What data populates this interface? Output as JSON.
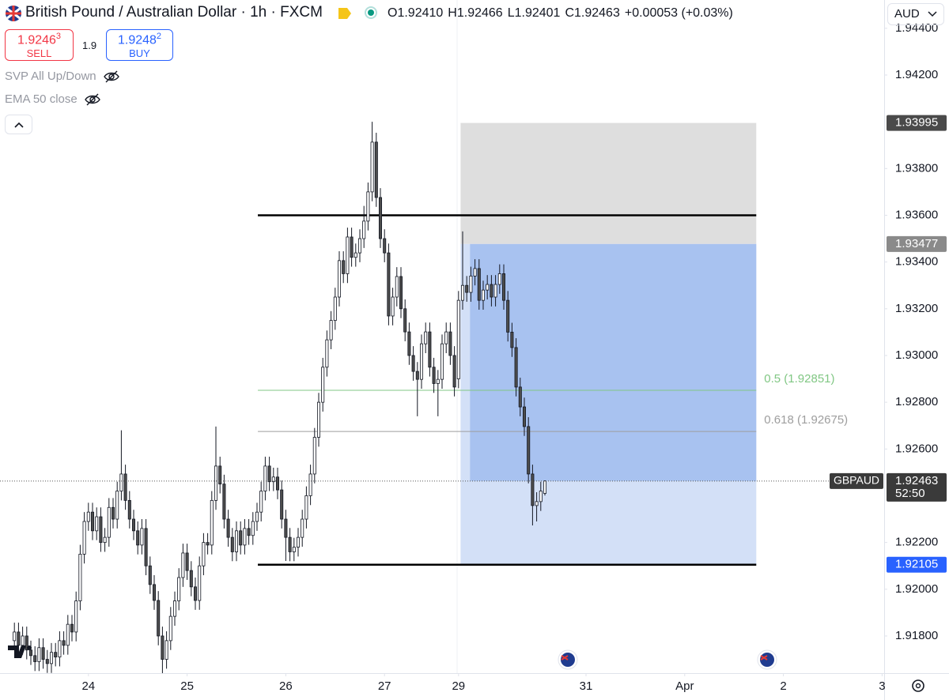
{
  "header": {
    "title": "British Pound / Australian Dollar · 1h · FXCM",
    "ohlc": [
      {
        "label": "O",
        "value": "1.92410"
      },
      {
        "label": "H",
        "value": "1.92466"
      },
      {
        "label": "L",
        "value": "1.92401"
      },
      {
        "label": "C",
        "value": "1.92463"
      }
    ],
    "change": "+0.00053 (+0.03%)",
    "currency": "AUD"
  },
  "trade": {
    "sell_price": "1.9246",
    "sell_sup": "3",
    "sell_label": "SELL",
    "spread": "1.9",
    "buy_price": "1.9248",
    "buy_sup": "2",
    "buy_label": "BUY"
  },
  "indicators": [
    "SVP All Up/Down",
    "EMA 50 close"
  ],
  "chart_data": {
    "type": "candlestick",
    "symbol": "GBPAUD",
    "countdown": "52:50",
    "colors": {
      "up": "#ffffff",
      "down": "#4d4d4d",
      "outline": "#131722"
    },
    "ylim": [
      1.91641,
      1.94521
    ],
    "yticks": [
      {
        "value": 1.944,
        "label": "1.94400"
      },
      {
        "value": 1.942,
        "label": "1.94200"
      },
      {
        "value": 1.938,
        "label": "1.93800"
      },
      {
        "value": 1.936,
        "label": "1.93600"
      },
      {
        "value": 1.934,
        "label": "1.93400"
      },
      {
        "value": 1.932,
        "label": "1.93200"
      },
      {
        "value": 1.93,
        "label": "1.93000"
      },
      {
        "value": 1.928,
        "label": "1.92800"
      },
      {
        "value": 1.926,
        "label": "1.92600"
      },
      {
        "value": 1.922,
        "label": "1.92200"
      },
      {
        "value": 1.92,
        "label": "1.92000"
      },
      {
        "value": 1.918,
        "label": "1.91800"
      }
    ],
    "xlim": [
      -3.5,
      211.5
    ],
    "xticks": [
      {
        "value": 18,
        "label": "24"
      },
      {
        "value": 42,
        "label": "25"
      },
      {
        "value": 66,
        "label": "26"
      },
      {
        "value": 90,
        "label": "27"
      },
      {
        "value": 108,
        "label": "29"
      },
      {
        "value": 139,
        "label": "31"
      },
      {
        "value": 163,
        "label": "Apr"
      },
      {
        "value": 187,
        "label": "2"
      },
      {
        "value": 211,
        "label": "3"
      }
    ],
    "open": [
      1.9178,
      1.91817,
      1.9176,
      1.918,
      1.9174,
      1.91716,
      1.9169,
      1.9175,
      1.917,
      1.91682,
      1.9173,
      1.9171,
      1.9178,
      1.9176,
      1.9185,
      1.91817,
      1.9195,
      1.9215,
      1.9229,
      1.9233,
      1.9225,
      1.9231,
      1.922,
      1.92222,
      1.9235,
      1.923,
      1.9242,
      1.92493,
      1.9238,
      1.923,
      1.9225,
      1.92189,
      1.9226,
      1.921,
      1.9202,
      1.91952,
      1.918,
      1.917,
      1.9178,
      1.91884,
      1.9195,
      1.9205,
      1.92155,
      1.9208,
      1.9201,
      1.91952,
      1.921,
      1.922,
      1.92189,
      1.9238,
      1.92527,
      1.9245,
      1.923,
      1.92222,
      1.9216,
      1.9225,
      1.92189,
      1.9226,
      1.9223,
      1.9229,
      1.9233,
      1.9242,
      1.92527,
      1.9246,
      1.9248,
      1.92425,
      1.923,
      1.92222,
      1.9216,
      1.9218,
      1.92222,
      1.923,
      1.924,
      1.92493,
      1.9265,
      1.928,
      1.9295,
      1.93067,
      1.9315,
      1.9325,
      1.93406,
      1.9335,
      1.93507,
      1.9342,
      1.93439,
      1.935,
      1.93575,
      1.937,
      1.93913,
      1.93676,
      1.935,
      1.93439,
      1.93169,
      1.9325,
      1.93338,
      1.932,
      1.93101,
      1.93,
      1.92932,
      1.92898,
      1.9305,
      1.93101,
      1.9295,
      1.9288,
      1.92898,
      1.9305,
      1.93101,
      1.93,
      1.929,
      1.93236,
      1.933,
      1.9327,
      1.9334,
      1.93372,
      1.93236,
      1.9328,
      1.93304,
      1.9325,
      1.93304,
      1.9335,
      1.93236,
      1.931,
      1.93034,
      1.92865,
      1.9278,
      1.92696,
      1.92493,
      1.92358,
      1.92375,
      1.9241
    ],
    "high": [
      1.91857,
      1.91857,
      1.9184,
      1.9184,
      1.9178,
      1.91756,
      1.9179,
      1.9179,
      1.9174,
      1.9177,
      1.9177,
      1.9182,
      1.9182,
      1.9189,
      1.9189,
      1.9199,
      1.9219,
      1.9233,
      1.9237,
      1.9237,
      1.9235,
      1.9235,
      1.92262,
      1.9239,
      1.9239,
      1.9246,
      1.9268,
      1.92533,
      1.9242,
      1.9234,
      1.9229,
      1.923,
      1.923,
      1.9214,
      1.9206,
      1.91992,
      1.9184,
      1.9182,
      1.91924,
      1.9199,
      1.9209,
      1.92195,
      1.92195,
      1.9212,
      1.9205,
      1.9214,
      1.9224,
      1.9224,
      1.9242,
      1.92696,
      1.92567,
      1.9249,
      1.9234,
      1.92262,
      1.9229,
      1.9229,
      1.923,
      1.923,
      1.9233,
      1.9237,
      1.9246,
      1.92567,
      1.92567,
      1.9252,
      1.9252,
      1.92465,
      1.9234,
      1.92262,
      1.9222,
      1.92262,
      1.9234,
      1.9244,
      1.92533,
      1.9269,
      1.9284,
      1.9299,
      1.93107,
      1.9319,
      1.9329,
      1.93446,
      1.93446,
      1.93547,
      1.93547,
      1.93479,
      1.9354,
      1.9364,
      1.9374,
      1.94,
      1.93953,
      1.93716,
      1.9354,
      1.93479,
      1.9329,
      1.93378,
      1.93378,
      1.9324,
      1.93141,
      1.9304,
      1.92972,
      1.9309,
      1.93141,
      1.93141,
      1.9299,
      1.92938,
      1.9309,
      1.93141,
      1.93141,
      1.9304,
      1.93276,
      1.93531,
      1.9334,
      1.9338,
      1.93412,
      1.93412,
      1.9332,
      1.93344,
      1.93344,
      1.93344,
      1.9339,
      1.9339,
      1.93276,
      1.9314,
      1.93074,
      1.92905,
      1.9282,
      1.92736,
      1.92533,
      1.92415,
      1.9246,
      1.92466
    ],
    "low": [
      1.9174,
      1.9172,
      1.9172,
      1.917,
      1.91676,
      1.9165,
      1.9165,
      1.9166,
      1.91642,
      1.91642,
      1.9167,
      1.9167,
      1.9172,
      1.9172,
      1.91777,
      1.91777,
      1.9191,
      1.9211,
      1.9225,
      1.9221,
      1.9221,
      1.9216,
      1.9216,
      1.92182,
      1.9226,
      1.9226,
      1.9238,
      1.9234,
      1.9226,
      1.9221,
      1.92149,
      1.92149,
      1.9206,
      1.9198,
      1.91912,
      1.9176,
      1.9162,
      1.9166,
      1.9174,
      1.91844,
      1.9191,
      1.9201,
      1.9204,
      1.9197,
      1.91912,
      1.91912,
      1.9206,
      1.92149,
      1.92149,
      1.9234,
      1.9241,
      1.9226,
      1.92182,
      1.9212,
      1.9212,
      1.92149,
      1.92149,
      1.9219,
      1.9219,
      1.9225,
      1.9229,
      1.9238,
      1.9242,
      1.9242,
      1.92385,
      1.9226,
      1.92121,
      1.9212,
      1.9212,
      1.9214,
      1.92182,
      1.9226,
      1.9236,
      1.92453,
      1.9261,
      1.9276,
      1.9291,
      1.93027,
      1.9311,
      1.9321,
      1.9331,
      1.9331,
      1.9338,
      1.9338,
      1.93399,
      1.9346,
      1.93535,
      1.9366,
      1.93636,
      1.9346,
      1.93399,
      1.93129,
      1.93129,
      1.9321,
      1.9316,
      1.93061,
      1.9296,
      1.92892,
      1.9274,
      1.92858,
      1.9301,
      1.9291,
      1.9284,
      1.9274,
      1.92858,
      1.9301,
      1.9296,
      1.92825,
      1.9286,
      1.93196,
      1.9323,
      1.9323,
      1.933,
      1.93196,
      1.93196,
      1.9324,
      1.9321,
      1.9321,
      1.93264,
      1.93196,
      1.9306,
      1.92994,
      1.92825,
      1.9274,
      1.92656,
      1.92453,
      1.92273,
      1.9229,
      1.92335,
      1.92401
    ],
    "close": [
      1.91817,
      1.9176,
      1.918,
      1.9174,
      1.91716,
      1.9169,
      1.9175,
      1.917,
      1.91682,
      1.9173,
      1.9171,
      1.9178,
      1.9176,
      1.9185,
      1.91817,
      1.9195,
      1.9215,
      1.9229,
      1.9233,
      1.9225,
      1.9231,
      1.922,
      1.92222,
      1.9235,
      1.923,
      1.9242,
      1.92493,
      1.9238,
      1.923,
      1.9225,
      1.92189,
      1.9226,
      1.921,
      1.9202,
      1.91952,
      1.918,
      1.917,
      1.9178,
      1.91884,
      1.9195,
      1.9205,
      1.92155,
      1.9208,
      1.9201,
      1.91952,
      1.921,
      1.922,
      1.92189,
      1.9238,
      1.92527,
      1.9245,
      1.923,
      1.92222,
      1.9216,
      1.9225,
      1.92189,
      1.9226,
      1.9223,
      1.9229,
      1.9233,
      1.9242,
      1.92527,
      1.9246,
      1.9248,
      1.92425,
      1.923,
      1.92222,
      1.9216,
      1.9218,
      1.92222,
      1.923,
      1.924,
      1.92493,
      1.9265,
      1.928,
      1.9295,
      1.93067,
      1.9315,
      1.9325,
      1.93406,
      1.9335,
      1.93507,
      1.9342,
      1.93439,
      1.935,
      1.93575,
      1.937,
      1.93913,
      1.93676,
      1.935,
      1.93439,
      1.93169,
      1.9325,
      1.93338,
      1.932,
      1.93101,
      1.93,
      1.92932,
      1.92898,
      1.9305,
      1.93101,
      1.9295,
      1.9288,
      1.92898,
      1.9305,
      1.93101,
      1.93,
      1.92865,
      1.93236,
      1.933,
      1.9327,
      1.9334,
      1.93372,
      1.93236,
      1.9328,
      1.93304,
      1.9325,
      1.93304,
      1.9335,
      1.93236,
      1.931,
      1.93034,
      1.92865,
      1.9278,
      1.92696,
      1.92493,
      1.92358,
      1.92375,
      1.9242,
      1.92463
    ],
    "hlines": [
      {
        "value": 1.936,
        "start": 59.2,
        "end": 180.4,
        "color": "#000000"
      },
      {
        "value": 1.92105,
        "start": 59.2,
        "end": 180.4,
        "color": "#000000"
      }
    ],
    "fib": [
      {
        "label": "0.5 (1.92851)",
        "value": 1.92851,
        "start": 59.2,
        "end": 180.4,
        "color": "#81c784"
      },
      {
        "label": "0.618 (1.92675)",
        "value": 1.92675,
        "start": 59.2,
        "end": 180.4,
        "color": "#9e9e9e"
      }
    ],
    "position": {
      "stop": 1.93995,
      "entry": 1.93477,
      "target": 1.92105,
      "start": 108.5,
      "fill_start": 110.8,
      "end": 180.4
    }
  }
}
